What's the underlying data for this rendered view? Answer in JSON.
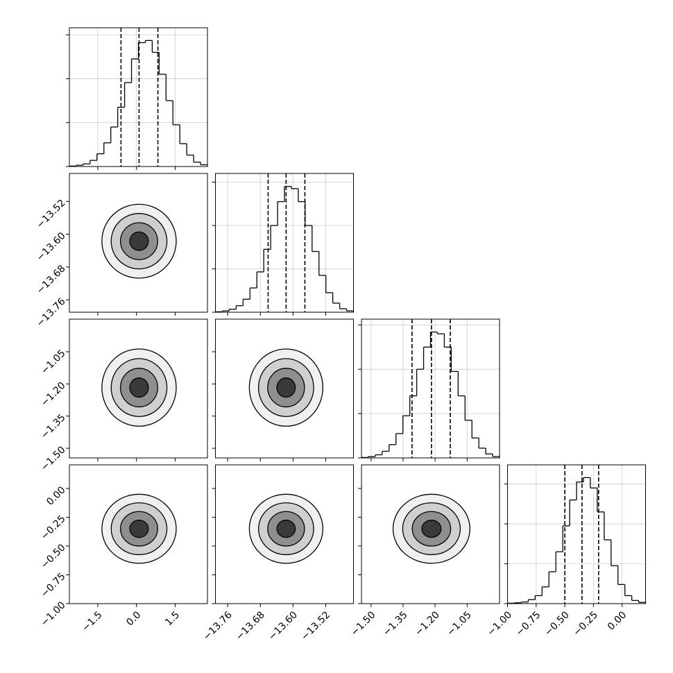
{
  "chart_data": {
    "type": "corner",
    "grid": true,
    "line_color": "#000000",
    "grid_color": "#cccccc",
    "contour_fills": [
      "#3a3a3a",
      "#8f8f8f",
      "#cfcfcf",
      "#f0f0f0"
    ],
    "params": [
      {
        "lim": [
          -2.6,
          2.75
        ],
        "ticks": [
          {
            "value": -1.5,
            "label": "−1.5"
          },
          {
            "value": 0,
            "label": "0.0"
          },
          1.5
        ],
        "bins": [
          -2.6,
          -2.3325,
          -2.065,
          -1.7975,
          -1.53,
          -1.2625,
          -0.995,
          -0.7275,
          -0.46,
          -0.1925,
          0.075,
          0.3425,
          0.61,
          0.8775,
          1.145,
          1.4125,
          1.68,
          1.9475,
          2.215,
          2.4825,
          2.75
        ],
        "counts": [
          0.01,
          0.03,
          0.06,
          0.14,
          0.29,
          0.54,
          0.9,
          1.35,
          1.91,
          2.45,
          2.82,
          2.87,
          2.6,
          2.1,
          1.5,
          0.95,
          0.52,
          0.26,
          0.1,
          0.04
        ],
        "count_lim": [
          0,
          3.16
        ],
        "count_ticks": [
          0,
          1,
          2,
          3
        ],
        "quantiles": [
          -0.6,
          0.1,
          0.83
        ]
      },
      {
        "lim": [
          -13.79,
          -13.452
        ],
        "ticks": [
          {
            "value": -13.76,
            "label": "−13.76"
          },
          {
            "value": -13.68,
            "label": "−13.68"
          },
          {
            "value": -13.6,
            "label": "−13.60"
          },
          {
            "value": -13.52,
            "label": "−13.52"
          }
        ],
        "bins": [
          -13.79,
          -13.7731,
          -13.7562,
          -13.7393,
          -13.7224,
          -13.7055,
          -13.6886,
          -13.6717,
          -13.6548,
          -13.6379,
          -13.621,
          -13.6041,
          -13.5872,
          -13.5703,
          -13.5534,
          -13.5365,
          -13.5196,
          -13.5027,
          -13.4858,
          -13.4689,
          -13.452
        ],
        "counts": [
          0.01,
          0.03,
          0.07,
          0.15,
          0.3,
          0.56,
          0.93,
          1.45,
          2.0,
          2.55,
          2.9,
          2.85,
          2.55,
          2.0,
          1.4,
          0.85,
          0.45,
          0.21,
          0.08,
          0.03
        ],
        "count_lim": [
          0,
          3.2
        ],
        "count_ticks": [
          0,
          1,
          2,
          3
        ],
        "quantiles": [
          -13.661,
          -13.617,
          -13.571
        ]
      },
      {
        "lim": [
          -1.545,
          -0.898
        ],
        "ticks": [
          {
            "value": -1.5,
            "label": "−1.50"
          },
          {
            "value": -1.35,
            "label": "−1.35"
          },
          {
            "value": -1.2,
            "label": "−1.20"
          },
          {
            "value": -1.05,
            "label": "−1.05"
          }
        ],
        "bins": [
          -1.545,
          -1.51265,
          -1.4803,
          -1.44795,
          -1.4156,
          -1.38325,
          -1.3509,
          -1.31855,
          -1.2862,
          -1.25385,
          -1.2215,
          -1.18915,
          -1.1568,
          -1.12445,
          -1.0921,
          -1.05975,
          -1.0274,
          -0.99505,
          -0.9627,
          -0.93035,
          -0.898
        ],
        "counts": [
          0.01,
          0.03,
          0.07,
          0.15,
          0.3,
          0.55,
          0.95,
          1.4,
          2.0,
          2.5,
          2.84,
          2.8,
          2.5,
          1.95,
          1.4,
          0.85,
          0.45,
          0.22,
          0.09,
          0.03
        ],
        "count_lim": [
          0,
          3.13
        ],
        "count_ticks": [
          0,
          1,
          2,
          3
        ],
        "quantiles": [
          -1.308,
          -1.217,
          -1.129
        ]
      },
      {
        "lim": [
          -1.0,
          0.205
        ],
        "ticks": [
          {
            "value": -1,
            "label": "−1.00"
          },
          {
            "value": -0.75,
            "label": "−0.75"
          },
          {
            "value": -0.5,
            "label": "−0.50"
          },
          {
            "value": -0.25,
            "label": "−0.25"
          },
          {
            "value": 0,
            "label": "0.00"
          }
        ],
        "bins": [
          -1,
          -0.93975,
          -0.8795,
          -0.81925,
          -0.759,
          -0.69875,
          -0.6385,
          -0.57825,
          -0.518,
          -0.45775,
          -0.3975,
          -0.33725,
          -0.277,
          -0.21675,
          -0.1565,
          -0.09625,
          -0.036,
          0.02425,
          0.0845,
          0.14475,
          0.205
        ],
        "counts": [
          0.01,
          0.02,
          0.04,
          0.1,
          0.2,
          0.42,
          0.8,
          1.3,
          1.95,
          2.6,
          3.05,
          3.16,
          2.9,
          2.3,
          1.6,
          0.95,
          0.48,
          0.2,
          0.08,
          0.03
        ],
        "count_lim": [
          0,
          3.48
        ],
        "count_ticks": [
          0,
          1,
          2,
          3
        ],
        "quantiles": [
          -0.5,
          -0.35,
          -0.205
        ]
      }
    ],
    "pairs": [
      [
        {
          "center": [
            0.1,
            -13.617
          ],
          "radii_x": [
            0.36,
            0.72,
            1.08,
            1.44
          ],
          "radii_y": [
            0.0225,
            0.045,
            0.0675,
            0.09
          ]
        }
      ],
      [
        {
          "center": [
            0.1,
            -1.217
          ],
          "radii_x": [
            0.36,
            0.72,
            1.08,
            1.44
          ],
          "radii_y": [
            0.045,
            0.09,
            0.135,
            0.18
          ]
        },
        {
          "center": [
            -13.617,
            -1.217
          ],
          "radii_x": [
            0.0225,
            0.045,
            0.0675,
            0.09
          ],
          "radii_y": [
            0.045,
            0.09,
            0.135,
            0.18
          ]
        }
      ],
      [
        {
          "center": [
            0.1,
            -0.35
          ],
          "radii_x": [
            0.36,
            0.72,
            1.08,
            1.44
          ],
          "radii_y": [
            0.075,
            0.15,
            0.225,
            0.3
          ]
        },
        {
          "center": [
            -13.617,
            -0.35
          ],
          "radii_x": [
            0.0225,
            0.045,
            0.0675,
            0.09
          ],
          "radii_y": [
            0.075,
            0.15,
            0.225,
            0.3
          ]
        },
        {
          "center": [
            -1.217,
            -0.35
          ],
          "radii_x": [
            0.045,
            0.09,
            0.135,
            0.18
          ],
          "radii_y": [
            0.075,
            0.15,
            0.225,
            0.3
          ]
        }
      ]
    ]
  }
}
